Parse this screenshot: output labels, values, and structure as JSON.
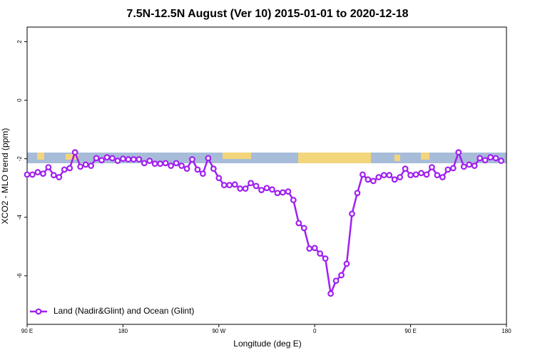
{
  "chart_data": {
    "type": "line",
    "title": "7.5N-12.5N August (Ver 10)   2015-01-01 to 2020-12-18",
    "x_label": "Longitude (deg E)",
    "y_label": "XCO2 - MLO trend (ppm)",
    "xlim": [
      90,
      540
    ],
    "ylim": [
      -7.66,
      2.5
    ],
    "xticks": [
      {
        "value": 90,
        "label": "90 E"
      },
      180,
      {
        "value": 270,
        "label": "90 W"
      },
      {
        "value": 360,
        "label": "0"
      },
      {
        "value": 450,
        "label": "90 E"
      },
      {
        "value": 540,
        "label": "180"
      }
    ],
    "yticks": [
      -6,
      -4,
      -2,
      0,
      2
    ],
    "legend": "bottom-left",
    "x": [
      90,
      95,
      100,
      105,
      110,
      115,
      120,
      125,
      130,
      135,
      140,
      145,
      150,
      155,
      160,
      165,
      170,
      175,
      180,
      185,
      190,
      195,
      200,
      205,
      210,
      215,
      220,
      225,
      230,
      235,
      240,
      245,
      250,
      255,
      260,
      265,
      270,
      275,
      280,
      285,
      290,
      295,
      300,
      305,
      310,
      315,
      320,
      325,
      330,
      335,
      340,
      345,
      350,
      355,
      360,
      365,
      370,
      375,
      380,
      385,
      390,
      395,
      400,
      405,
      410,
      415,
      420,
      425,
      430,
      435,
      440,
      445,
      450,
      455,
      460,
      465,
      470,
      475,
      480,
      485,
      490,
      495,
      500,
      505,
      510,
      515,
      520,
      525,
      530,
      535
    ],
    "series": [
      {
        "name": "Land (Nadir&Glint) and Ocean (Glint)",
        "color": "#a020f0",
        "values": [
          -2.54,
          -2.54,
          -2.46,
          -2.51,
          -2.29,
          -2.56,
          -2.63,
          -2.37,
          -2.32,
          -1.78,
          -2.27,
          -2.2,
          -2.24,
          -1.98,
          -2.05,
          -1.95,
          -1.98,
          -2.07,
          -2.0,
          -2.02,
          -2.02,
          -2.02,
          -2.15,
          -2.07,
          -2.17,
          -2.17,
          -2.15,
          -2.24,
          -2.15,
          -2.24,
          -2.34,
          -2.02,
          -2.37,
          -2.51,
          -1.98,
          -2.34,
          -2.66,
          -2.9,
          -2.9,
          -2.88,
          -3.02,
          -3.02,
          -2.83,
          -2.93,
          -3.07,
          -3.0,
          -3.05,
          -3.17,
          -3.15,
          -3.12,
          -3.41,
          -4.2,
          -4.37,
          -5.07,
          -5.05,
          -5.24,
          -5.41,
          -6.61,
          -6.17,
          -5.98,
          -5.59,
          -3.88,
          -3.17,
          -2.54,
          -2.71,
          -2.76,
          -2.63,
          -2.56,
          -2.56,
          -2.71,
          -2.63,
          -2.34,
          -2.56,
          -2.54,
          -2.49,
          -2.54,
          -2.29,
          -2.56,
          -2.63,
          -2.37,
          -2.32,
          -1.78,
          -2.27,
          -2.2,
          -2.24,
          -1.98,
          -2.05,
          -1.95,
          -1.98,
          -2.07
        ]
      }
    ]
  }
}
